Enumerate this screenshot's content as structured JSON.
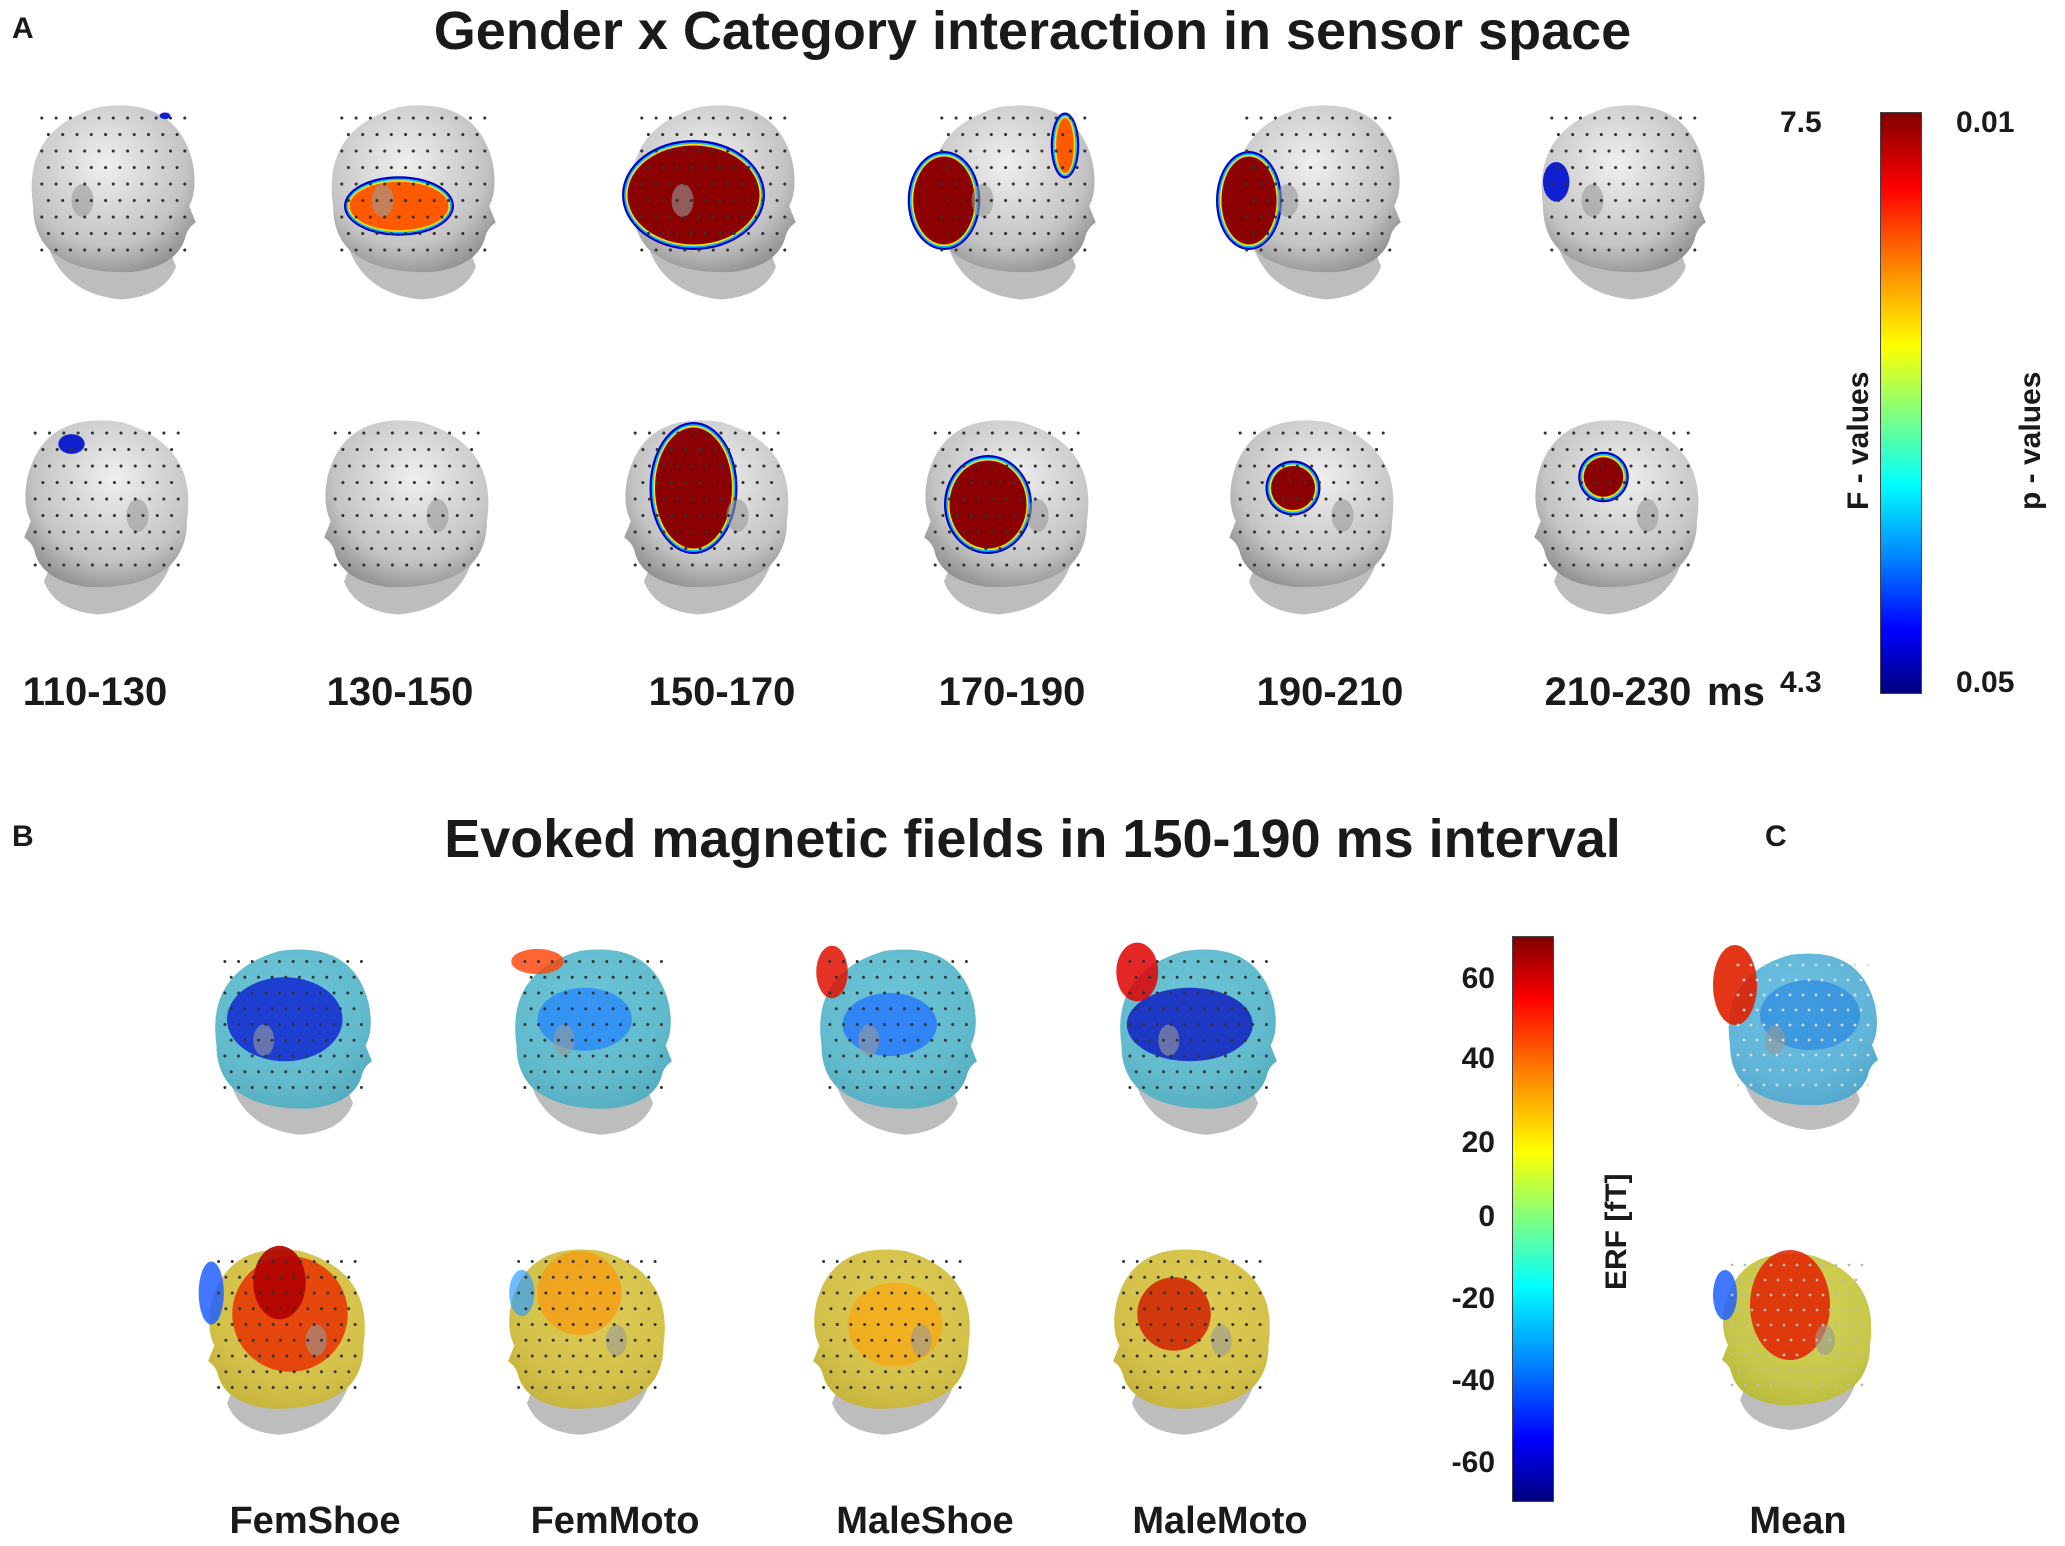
{
  "panel_a": {
    "letter": "A",
    "title": "Gender x Category interaction in sensor space",
    "time_windows": [
      "110-130",
      "130-150",
      "150-170",
      "170-190",
      "190-210",
      "210-230"
    ],
    "time_unit": "ms",
    "colorbar": {
      "f_label": "F - values",
      "p_label": "p - values",
      "f_max": "7.5",
      "f_min": "4.3",
      "p_top": "0.01",
      "p_bottom": "0.05"
    }
  },
  "panel_b": {
    "letter": "B",
    "title": "Evoked magnetic fields in 150-190 ms interval",
    "conditions": [
      "FemShoe",
      "FemMoto",
      "MaleShoe",
      "MaleMoto"
    ],
    "colorbar": {
      "label": "ERF [fT]",
      "ticks": [
        "60",
        "40",
        "20",
        "0",
        "-20",
        "-40",
        "-60"
      ]
    }
  },
  "panel_c": {
    "letter": "C",
    "label": "Mean"
  },
  "colors": {
    "head_gray": "#c8c8c8",
    "jet_high": "#8b0000",
    "jet_low": "#00008b"
  }
}
